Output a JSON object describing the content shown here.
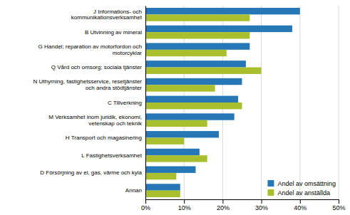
{
  "chart_data": {
    "type": "bar",
    "orientation": "horizontal",
    "categories": [
      "Annan",
      "D Försörjning av el, gas, värme och kyla",
      "L Fastighetsverksamhet",
      "H Transport och magasinering",
      "M Verksamhet inom juridik, ekonomi,\nvetenskap och teknik",
      "C Tillverkning",
      "N Uthyrning, fastighetsservice, resetjänster\noch andra stödtjänster",
      "Q Vård och omsorg; sociala tjänster",
      "G Handel; reparation av motorfordon och\nmotorcyklar",
      "B Utvinning av mineral",
      "J Informations- och\nkommunikationsverksamhet"
    ],
    "series": [
      {
        "name": "Andel av omsättning",
        "color": "#2677B5",
        "values": [
          9,
          13,
          14,
          19,
          23,
          24,
          25,
          26,
          27,
          38,
          40
        ]
      },
      {
        "name": "Andel av anställda",
        "color": "#AABF2E",
        "values": [
          9,
          8,
          16,
          10,
          16,
          25,
          18,
          30,
          21,
          27,
          27
        ]
      }
    ],
    "xlim": [
      0,
      50
    ],
    "xticks": [
      {
        "value": 0,
        "label": "0%"
      },
      {
        "value": 10,
        "label": "10%"
      },
      {
        "value": 20,
        "label": "20%"
      },
      {
        "value": 30,
        "label": "30%"
      },
      {
        "value": 40,
        "label": "40%"
      },
      {
        "value": 50,
        "label": "50%"
      }
    ],
    "grid": true,
    "legend": "lower right"
  }
}
